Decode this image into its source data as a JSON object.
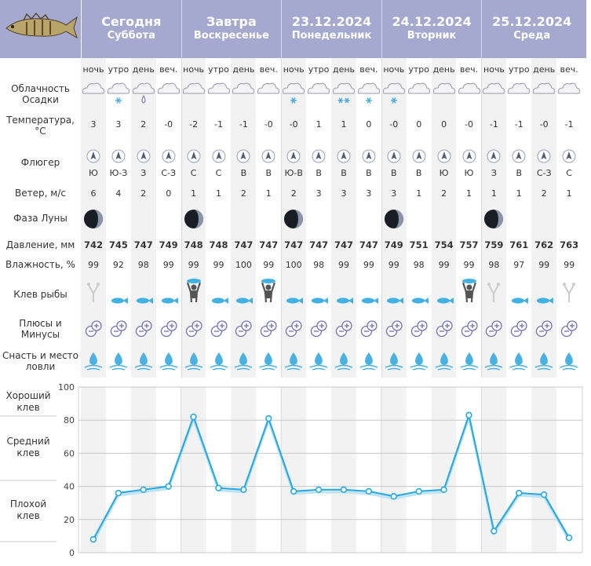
{
  "days": [
    {
      "title": "Сегодня",
      "subtitle": "Суббота"
    },
    {
      "title": "Завтра",
      "subtitle": "Воскресенье"
    },
    {
      "title": "23.12.2024",
      "subtitle": "Понедельник"
    },
    {
      "title": "24.12.2024",
      "subtitle": "Вторник"
    },
    {
      "title": "25.12.2024",
      "subtitle": "Среда"
    }
  ],
  "periods": [
    "ночь",
    "утро",
    "день",
    "веч."
  ],
  "row_labels": {
    "cloud": "Облачность\nОсадки",
    "temp": "Температура,\n°C",
    "vane": "Флюгер",
    "wind": "Ветер, м/с",
    "moon": "Фаза Луны",
    "pressure": "Давление, мм",
    "humidity": "Влажность, %",
    "bite": "Клев рыбы",
    "pm": "Плюсы и\nМинусы",
    "gear": "Снасть и место\nловли"
  },
  "precip": [
    "",
    "snow",
    "rain",
    "",
    "",
    "",
    "",
    "",
    "snow",
    "",
    "snow2",
    "snow",
    "snow",
    "",
    "",
    "",
    "",
    "",
    "",
    ""
  ],
  "temperature": [
    "3",
    "3",
    "2",
    "-0",
    "-2",
    "-1",
    "-1",
    "-0",
    "-0",
    "1",
    "1",
    "0",
    "-0",
    "0",
    "0",
    "-0",
    "-1",
    "-1",
    "-0",
    "-1"
  ],
  "wind_dir": [
    "Ю",
    "Ю-З",
    "З",
    "С-З",
    "С",
    "С",
    "В",
    "В",
    "Ю-В",
    "В",
    "В",
    "В",
    "В",
    "В",
    "Ю",
    "Ю",
    "З",
    "В",
    "С-З",
    "С"
  ],
  "wind_speed": [
    "6",
    "4",
    "2",
    "0",
    "1",
    "1",
    "2",
    "1",
    "2",
    "3",
    "3",
    "3",
    "3",
    "1",
    "2",
    "1",
    "1",
    "1",
    "2",
    "1"
  ],
  "pressure": [
    "742",
    "745",
    "747",
    "749",
    "748",
    "748",
    "747",
    "747",
    "747",
    "747",
    "747",
    "747",
    "749",
    "751",
    "754",
    "757",
    "759",
    "761",
    "762",
    "763"
  ],
  "humidity": [
    "99",
    "92",
    "98",
    "99",
    "99",
    "99",
    "100",
    "99",
    "100",
    "98",
    "99",
    "99",
    "99",
    "98",
    "99",
    "99",
    "98",
    "97",
    "99",
    "99"
  ],
  "bite_icon": [
    "rod",
    "fish",
    "fish",
    "fish",
    "man",
    "fish",
    "fish",
    "man",
    "fish",
    "fish",
    "fish",
    "fish",
    "fish",
    "fish",
    "fish",
    "man",
    "rod",
    "fish",
    "fish",
    "rod"
  ],
  "graph_labels": {
    "good": "Хороший\nклев",
    "medium": "Средний\nклев",
    "bad": "Плохой\nклев"
  },
  "colors": {
    "header": "#a6a9cf",
    "line": "#29aae1",
    "icon": "#6f72b4",
    "fish": "#3fb1e3"
  },
  "chart_data": {
    "type": "line",
    "x": [
      "Суббота ночь",
      "Суббота утро",
      "Суббота день",
      "Суббота веч.",
      "Воскресенье ночь",
      "Воскресенье утро",
      "Воскресенье день",
      "Воскресенье веч.",
      "23.12 ночь",
      "23.12 утро",
      "23.12 день",
      "23.12 веч.",
      "24.12 ночь",
      "24.12 утро",
      "24.12 день",
      "24.12 веч.",
      "25.12 ночь",
      "25.12 утро",
      "25.12 день",
      "25.12 веч."
    ],
    "series": [
      {
        "values": [
          8,
          36,
          38,
          40,
          82,
          39,
          38,
          81,
          37,
          38,
          38,
          37,
          34,
          37,
          38,
          83,
          13,
          36,
          35,
          9
        ]
      }
    ],
    "yticks": [
      "0",
      "20",
      "40",
      "60",
      "80",
      "100"
    ],
    "ylim": [
      0,
      100
    ],
    "grid": true
  }
}
